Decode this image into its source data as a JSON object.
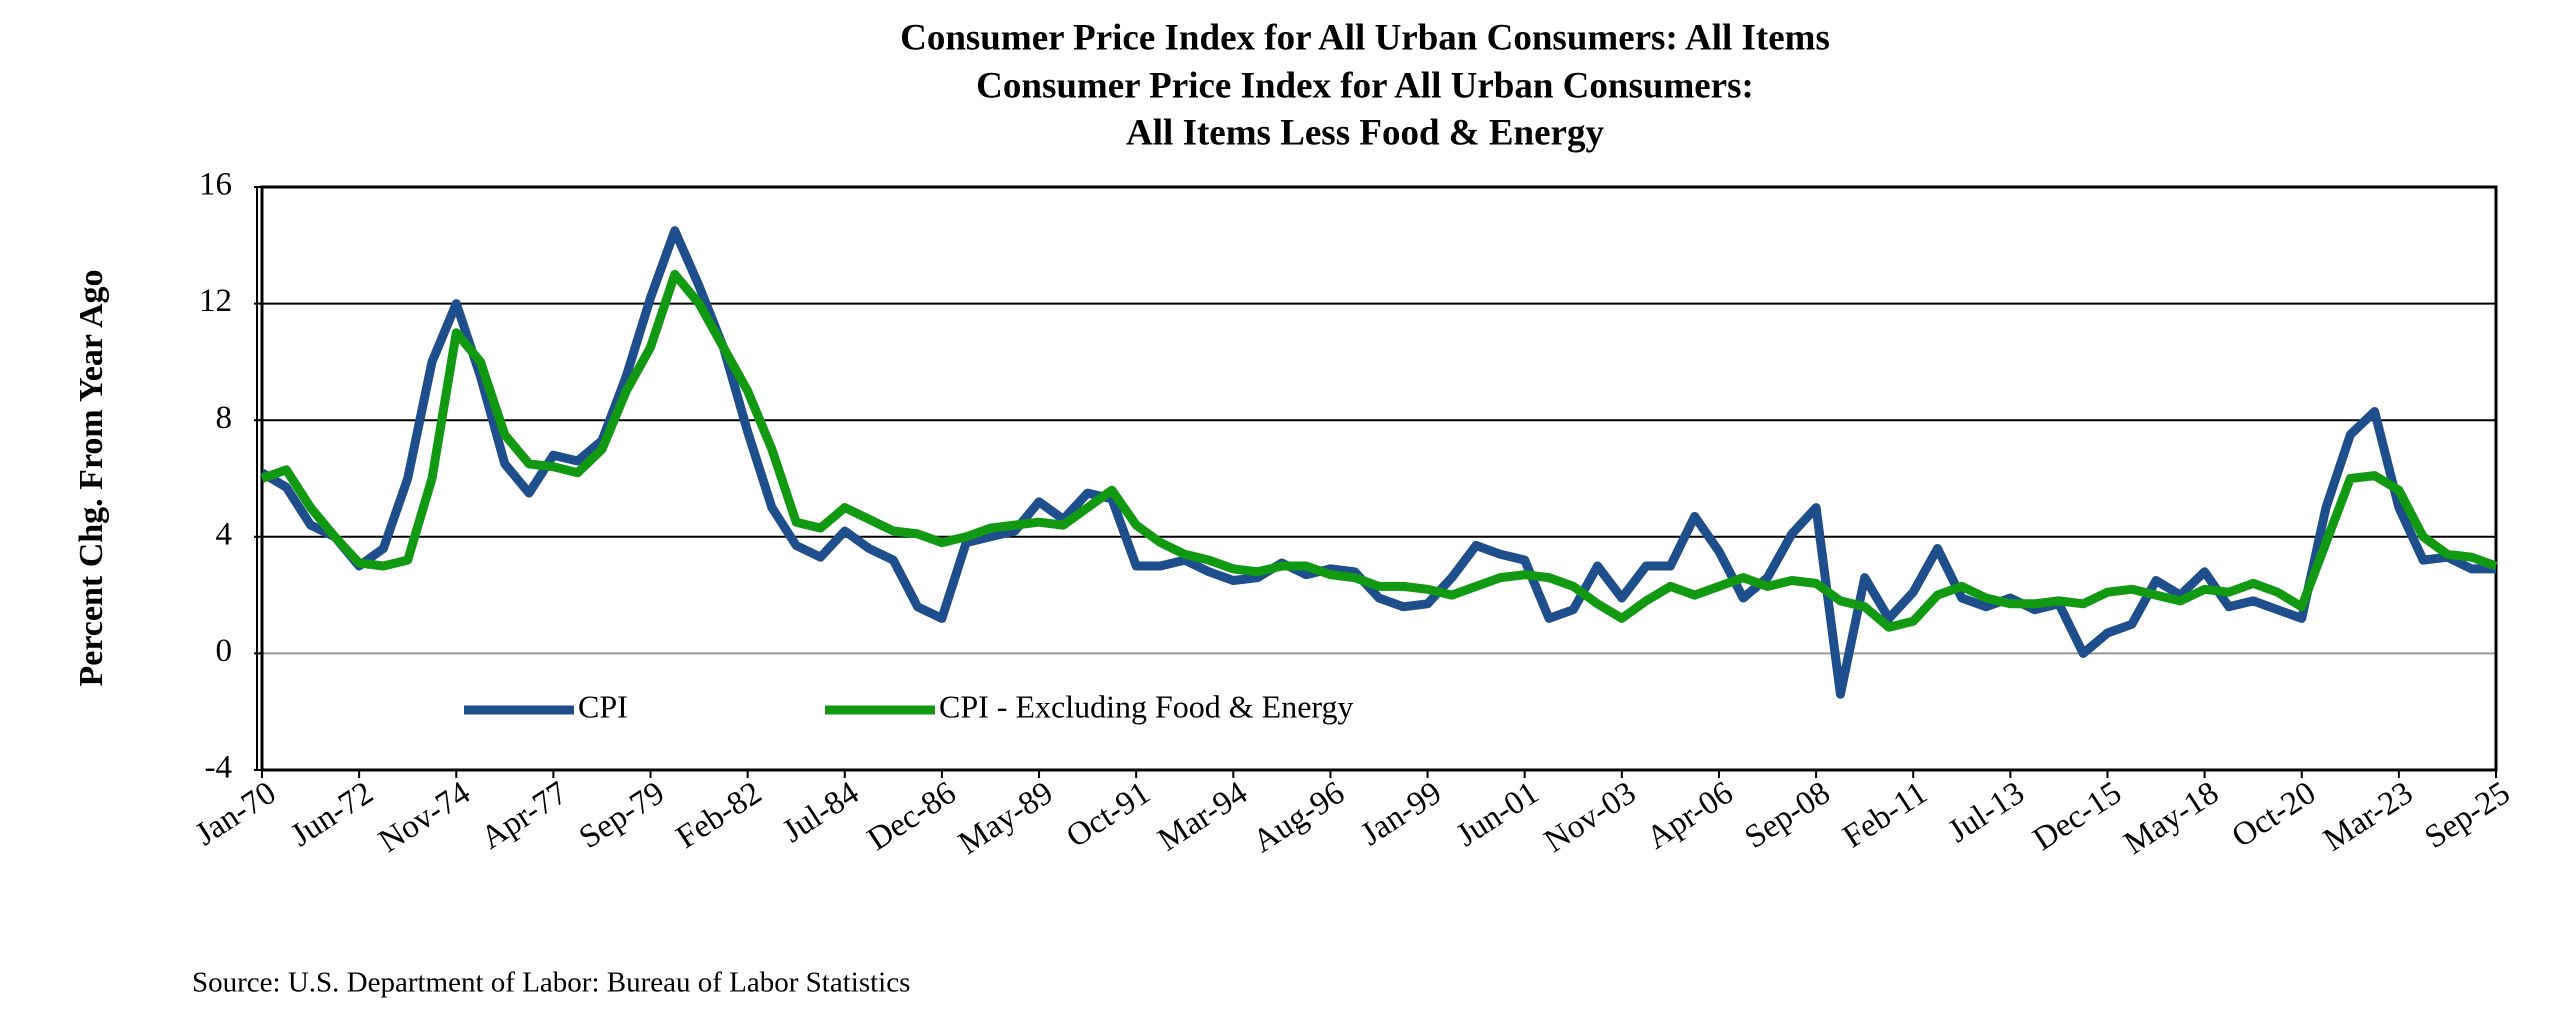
{
  "chart_data": {
    "type": "line",
    "title": [
      "Consumer Price Index for All Urban Consumers: All Items",
      "Consumer Price Index for All Urban Consumers:",
      "All Items Less Food & Energy"
    ],
    "y_label": "Percent Chg. From Year Ago",
    "source": "Source: U.S. Department of Labor: Bureau of Labor Statistics",
    "categories": [
      "Jan-70",
      null,
      null,
      null,
      "Jun-72",
      null,
      null,
      null,
      "Nov-74",
      null,
      null,
      null,
      "Apr-77",
      null,
      null,
      null,
      "Sep-79",
      null,
      null,
      null,
      "Feb-82",
      null,
      null,
      null,
      "Jul-84",
      null,
      null,
      null,
      "Dec-86",
      null,
      null,
      null,
      "May-89",
      null,
      null,
      null,
      "Oct-91",
      null,
      null,
      null,
      "Mar-94",
      null,
      null,
      null,
      "Aug-96",
      null,
      null,
      null,
      "Jan-99",
      null,
      null,
      null,
      "Jun-01",
      null,
      null,
      null,
      "Nov-03",
      null,
      null,
      null,
      "Apr-06",
      null,
      null,
      null,
      "Sep-08",
      null,
      null,
      null,
      "Feb-11",
      null,
      null,
      null,
      "Jul-13",
      null,
      null,
      null,
      "Dec-15",
      null,
      null,
      null,
      "May-18",
      null,
      null,
      null,
      "Oct-20",
      null,
      null,
      null,
      "Mar-23",
      null,
      null,
      null,
      "Sep-25"
    ],
    "series": [
      {
        "name": "CPI",
        "color": "#1f4e8c",
        "values": [
          6.2,
          5.7,
          4.4,
          4.0,
          3.0,
          3.6,
          6.0,
          10.0,
          12.0,
          9.5,
          6.5,
          5.5,
          6.8,
          6.6,
          7.3,
          9.5,
          12.2,
          14.5,
          12.6,
          10.5,
          7.6,
          5.0,
          3.7,
          3.3,
          4.2,
          3.6,
          3.2,
          1.6,
          1.2,
          3.8,
          4.0,
          4.2,
          5.2,
          4.6,
          5.5,
          5.3,
          3.0,
          3.0,
          3.2,
          2.8,
          2.5,
          2.6,
          3.1,
          2.7,
          2.9,
          2.8,
          1.9,
          1.6,
          1.7,
          2.6,
          3.7,
          3.4,
          3.2,
          1.2,
          1.5,
          3.0,
          1.9,
          3.0,
          3.0,
          4.7,
          3.5,
          1.9,
          2.6,
          4.1,
          5.0,
          -1.4,
          2.6,
          1.2,
          2.1,
          3.6,
          1.9,
          1.6,
          1.9,
          1.5,
          1.7,
          0.0,
          0.7,
          1.0,
          2.5,
          2.0,
          2.8,
          1.6,
          1.8,
          1.5,
          1.2,
          5.0,
          7.5,
          8.3,
          5.0,
          3.2,
          3.3,
          2.9,
          2.9
        ]
      },
      {
        "name": "CPI - Excluding Food & Energy",
        "color": "#119911",
        "values": [
          6.0,
          6.3,
          5.0,
          4.0,
          3.1,
          3.0,
          3.2,
          6.0,
          11.0,
          10.0,
          7.5,
          6.5,
          6.4,
          6.2,
          7.0,
          9.0,
          10.5,
          13.0,
          12.0,
          10.5,
          9.0,
          7.0,
          4.5,
          4.3,
          5.0,
          4.6,
          4.2,
          4.1,
          3.8,
          4.0,
          4.3,
          4.4,
          4.5,
          4.4,
          5.0,
          5.6,
          4.4,
          3.8,
          3.4,
          3.2,
          2.9,
          2.8,
          3.0,
          3.0,
          2.7,
          2.6,
          2.3,
          2.3,
          2.2,
          2.0,
          2.3,
          2.6,
          2.7,
          2.6,
          2.3,
          1.7,
          1.2,
          1.8,
          2.3,
          2.0,
          2.3,
          2.6,
          2.3,
          2.5,
          2.4,
          1.8,
          1.6,
          0.9,
          1.1,
          2.0,
          2.3,
          1.9,
          1.7,
          1.7,
          1.8,
          1.7,
          2.1,
          2.2,
          2.0,
          1.8,
          2.2,
          2.1,
          2.4,
          2.1,
          1.6,
          3.8,
          6.0,
          6.1,
          5.6,
          4.0,
          3.4,
          3.3,
          3.0
        ]
      }
    ],
    "ylim": [
      -4,
      16
    ],
    "yticks": [
      -4,
      0,
      4,
      8,
      12,
      16
    ],
    "grid": true
  }
}
